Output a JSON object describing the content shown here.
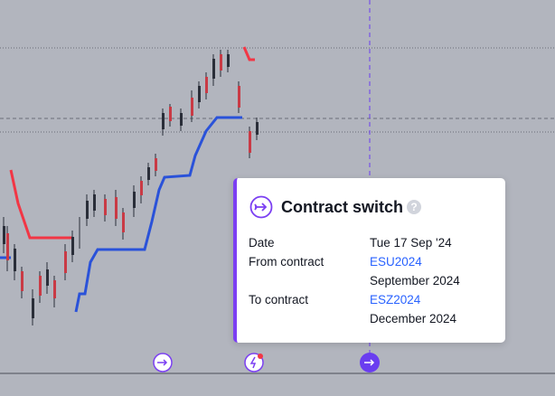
{
  "tooltip": {
    "title": "Contract switch",
    "rows": [
      {
        "label": "Date",
        "value": "Tue 17 Sep '24"
      },
      {
        "label": "From contract",
        "value": "ESU2024",
        "detail": "September 2024"
      },
      {
        "label": "To contract",
        "value": "ESZ2024",
        "detail": "December 2024"
      }
    ]
  }
}
